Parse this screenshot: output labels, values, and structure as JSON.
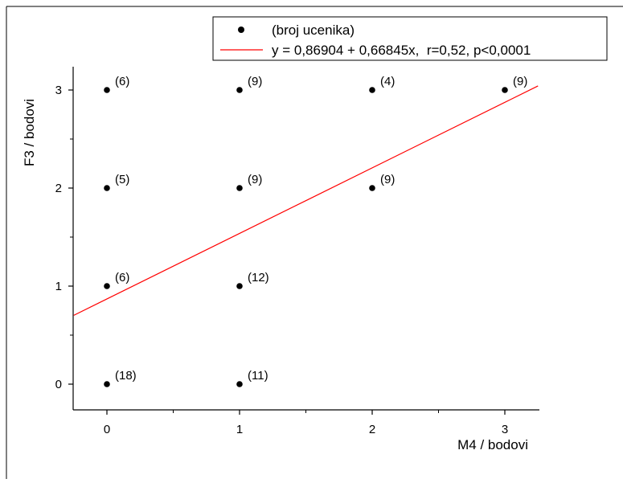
{
  "chart_data": {
    "type": "scatter",
    "xlabel": "M4 / bodovi",
    "ylabel": "F3 / bodovi",
    "xlim": [
      -0.25,
      3.25
    ],
    "ylim": [
      -0.25,
      3.25
    ],
    "xticks": [
      0,
      1,
      2,
      3
    ],
    "yticks": [
      0,
      1,
      2,
      3
    ],
    "grid": false,
    "legend_position": "top-right",
    "series": [
      {
        "name": "(broj ucenika)",
        "color": "#000000",
        "points": [
          {
            "x": 0,
            "y": 3,
            "label": "(6)"
          },
          {
            "x": 1,
            "y": 3,
            "label": "(9)"
          },
          {
            "x": 2,
            "y": 3,
            "label": "(4)"
          },
          {
            "x": 3,
            "y": 3,
            "label": "(9)"
          },
          {
            "x": 0,
            "y": 2,
            "label": "(5)"
          },
          {
            "x": 1,
            "y": 2,
            "label": "(9)"
          },
          {
            "x": 2,
            "y": 2,
            "label": "(9)"
          },
          {
            "x": 0,
            "y": 1,
            "label": "(6)"
          },
          {
            "x": 1,
            "y": 1,
            "label": "(12)"
          },
          {
            "x": 0,
            "y": 0,
            "label": "(18)"
          },
          {
            "x": 1,
            "y": 0,
            "label": "(11)"
          }
        ]
      }
    ],
    "fit_line": {
      "name": "y = 0,86904 + 0,66845x,  r=0,52, p<0,0001",
      "color": "#ff0000",
      "intercept": 0.86904,
      "slope": 0.66845
    }
  }
}
